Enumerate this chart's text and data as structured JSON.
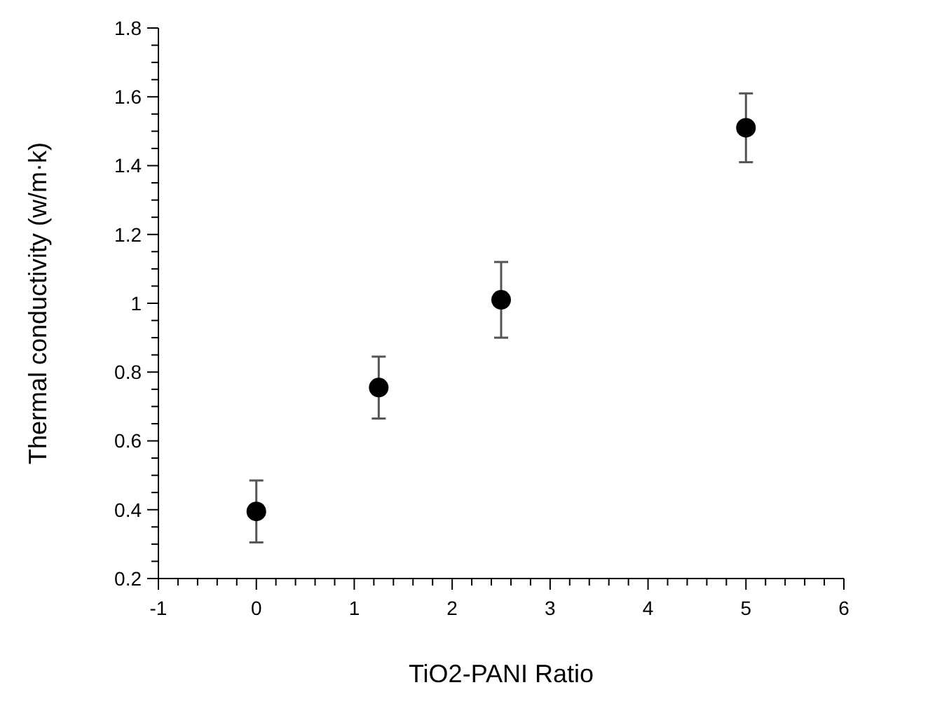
{
  "chart_data": {
    "type": "scatter",
    "xlabel": "TiO2-PANI Ratio",
    "ylabel": "Thermal conductivity (w/m·k)",
    "x": [
      0,
      1.25,
      2.5,
      5
    ],
    "values": [
      0.395,
      0.755,
      1.01,
      1.51
    ],
    "errors": [
      0.09,
      0.09,
      0.11,
      0.1
    ],
    "color": "#000000",
    "marker": "circle",
    "xlim": [
      -1,
      6
    ],
    "ylim": [
      0.2,
      1.8
    ],
    "xticks": [
      -1,
      {
        "value": -0.8,
        "label": null
      },
      {
        "value": -0.6,
        "label": null
      },
      {
        "value": -0.4,
        "label": null
      },
      {
        "value": -0.2,
        "label": null
      },
      0,
      {
        "value": 0.2,
        "label": null
      },
      {
        "value": 0.4,
        "label": null
      },
      {
        "value": 0.6,
        "label": null
      },
      {
        "value": 0.8,
        "label": null
      },
      1,
      {
        "value": 1.2,
        "label": null
      },
      {
        "value": 1.4,
        "label": null
      },
      {
        "value": 1.6,
        "label": null
      },
      {
        "value": 1.8,
        "label": null
      },
      2,
      {
        "value": 2.2,
        "label": null
      },
      {
        "value": 2.4,
        "label": null
      },
      {
        "value": 2.6,
        "label": null
      },
      {
        "value": 2.8,
        "label": null
      },
      3,
      {
        "value": 3.2,
        "label": null
      },
      {
        "value": 3.4,
        "label": null
      },
      {
        "value": 3.6,
        "label": null
      },
      {
        "value": 3.8,
        "label": null
      },
      4,
      {
        "value": 4.2,
        "label": null
      },
      {
        "value": 4.4,
        "label": null
      },
      {
        "value": 4.6,
        "label": null
      },
      {
        "value": 4.8,
        "label": null
      },
      5,
      {
        "value": 5.2,
        "label": null
      },
      {
        "value": 5.4,
        "label": null
      },
      {
        "value": 5.6,
        "label": null
      },
      {
        "value": 5.8,
        "label": null
      },
      6
    ],
    "yticks": [
      0.2,
      {
        "value": 0.25,
        "label": null
      },
      {
        "value": 0.3,
        "label": null
      },
      {
        "value": 0.35,
        "label": null
      },
      0.4,
      {
        "value": 0.45,
        "label": null
      },
      {
        "value": 0.5,
        "label": null
      },
      {
        "value": 0.55,
        "label": null
      },
      0.6,
      {
        "value": 0.65,
        "label": null
      },
      {
        "value": 0.7,
        "label": null
      },
      {
        "value": 0.75,
        "label": null
      },
      0.8,
      {
        "value": 0.85,
        "label": null
      },
      {
        "value": 0.9,
        "label": null
      },
      {
        "value": 0.95,
        "label": null
      },
      1,
      {
        "value": 1.05,
        "label": null
      },
      {
        "value": 1.1,
        "label": null
      },
      {
        "value": 1.15,
        "label": null
      },
      1.2,
      {
        "value": 1.25,
        "label": null
      },
      {
        "value": 1.3,
        "label": null
      },
      {
        "value": 1.35,
        "label": null
      },
      1.4,
      {
        "value": 1.45,
        "label": null
      },
      {
        "value": 1.5,
        "label": null
      },
      {
        "value": 1.55,
        "label": null
      },
      1.6,
      {
        "value": 1.65,
        "label": null
      },
      {
        "value": 1.7,
        "label": null
      },
      {
        "value": 1.75,
        "label": null
      },
      1.8
    ],
    "grid": false
  }
}
